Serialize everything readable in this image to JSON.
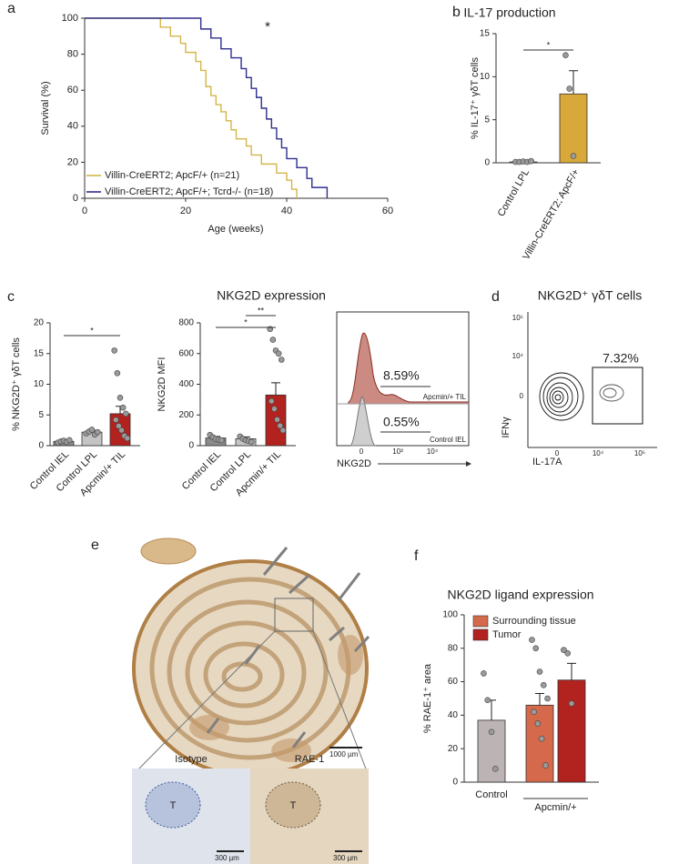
{
  "panel_labels": [
    "a",
    "b",
    "c",
    "d",
    "e",
    "f"
  ],
  "chart_data": [
    {
      "type": "step",
      "x_label": "Age (weeks)",
      "y_label": "Survival (%)",
      "annotation": "*",
      "xlim": [
        0,
        60
      ],
      "xticks": [
        0,
        20,
        40,
        60
      ],
      "ylim": [
        0,
        100
      ],
      "yticks": [
        0,
        20,
        40,
        60,
        80,
        100
      ],
      "series": [
        {
          "name": "Villin-CreERT2; ApcF/+ (n=21)",
          "color": "#d4b54a",
          "x": [
            0,
            15,
            17,
            19,
            20,
            22,
            23,
            24,
            25,
            26,
            27,
            28,
            29,
            30,
            32,
            33,
            35,
            38,
            40,
            41,
            42
          ],
          "values": [
            100,
            95,
            90,
            86,
            81,
            76,
            71,
            62,
            57,
            52,
            48,
            43,
            38,
            33,
            29,
            24,
            19,
            14,
            10,
            5,
            0
          ]
        },
        {
          "name": "Villin-CreERT2; ApcF/+; Tcrd-/- (n=18)",
          "color": "#2e2f8c",
          "x": [
            0,
            23,
            25,
            27,
            29,
            31,
            32,
            33,
            34,
            35,
            36,
            37,
            38,
            39,
            40,
            42,
            44,
            45,
            48
          ],
          "values": [
            100,
            94,
            89,
            83,
            78,
            72,
            67,
            61,
            56,
            50,
            44,
            39,
            33,
            28,
            22,
            17,
            11,
            6,
            0
          ]
        }
      ]
    },
    {
      "type": "bar",
      "title": "IL-17 production",
      "y_label": "% IL-17⁺ γδT cells",
      "categories": [
        "Control LPL",
        "Villin-CreERT2; ApcF/+"
      ],
      "values": [
        0.1,
        8
      ],
      "errors": [
        0.05,
        2.7
      ],
      "colors": [
        "#bdbdbd",
        "#d8a83a"
      ],
      "points": [
        [
          0.1,
          0.1,
          0.15,
          0.1,
          0.2
        ],
        [
          12.5,
          8.6,
          0.8
        ]
      ],
      "ylim": [
        0,
        15
      ],
      "yticks": [
        0,
        5,
        10,
        15
      ],
      "significance": [
        "*"
      ]
    },
    {
      "type": "bar",
      "y_label": "% NKG2D⁺ γδT cells",
      "categories": [
        "Control IEL",
        "Control LPL",
        "Apcmin/+ TIL"
      ],
      "values": [
        0.7,
        2.2,
        5.2
      ],
      "errors": [
        0.2,
        0.3,
        1.2
      ],
      "colors": [
        "#8a8a8a",
        "#c4c4c4",
        "#b2221e"
      ],
      "points": [
        [
          0.5,
          0.7,
          0.8,
          0.6,
          0.9
        ],
        [
          2.0,
          2.3,
          2.6,
          1.8,
          2.2
        ],
        [
          15.5,
          11.8,
          7.8,
          6.2,
          5.2,
          4.2,
          3.2,
          2.5,
          1.6,
          1.2
        ]
      ],
      "ylim": [
        0,
        20
      ],
      "yticks": [
        0,
        5,
        10,
        15,
        20
      ],
      "significance": [
        "*"
      ]
    },
    {
      "type": "bar",
      "title": "NKG2D expression",
      "y_label": "NKG2D MFI",
      "categories": [
        "Control IEL",
        "Control LPL",
        "Apcmin/+ TIL"
      ],
      "values": [
        50,
        45,
        330
      ],
      "errors": [
        10,
        12,
        80
      ],
      "colors": [
        "#8a8a8a",
        "#c4c4c4",
        "#b2221e"
      ],
      "points": [
        [
          70,
          55,
          45,
          40,
          35
        ],
        [
          60,
          45,
          35,
          30,
          25
        ],
        [
          760,
          690,
          620,
          600,
          560,
          290,
          240,
          170,
          130,
          100
        ]
      ],
      "ylim": [
        0,
        800
      ],
      "yticks": [
        0,
        200,
        400,
        600,
        800
      ],
      "significance": [
        "*",
        "**"
      ]
    },
    {
      "type": "bar",
      "title": "NKG2D ligand expression",
      "y_label": "% RAE-1⁺ area",
      "categories": [
        "Control",
        null,
        null
      ],
      "group_label": "Apcmin/+",
      "values": [
        37,
        46,
        61
      ],
      "errors": [
        12,
        7,
        10
      ],
      "colors": [
        "#bcb4b4",
        "#d4694c",
        "#b2221e"
      ],
      "legend": [
        {
          "name": "Surrounding tissue",
          "color": "#d4694c"
        },
        {
          "name": "Tumor",
          "color": "#b2221e"
        }
      ],
      "points": [
        [
          65,
          49,
          30,
          8
        ],
        [
          85,
          80,
          66,
          58,
          50,
          42,
          35,
          26,
          10
        ],
        [
          79,
          77,
          47
        ]
      ],
      "ylim": [
        0,
        100
      ],
      "yticks": [
        0,
        20,
        40,
        60,
        80,
        100
      ]
    }
  ],
  "flow_histogram": {
    "gates": [
      "8.59%",
      "0.55%"
    ],
    "samples": [
      "Apcmin/+ TIL",
      "Control IEL"
    ],
    "x_label": "NKG2D",
    "x_tick_labels": [
      "0",
      "10³",
      "10⁴"
    ]
  },
  "flow_contour": {
    "title": "NKG2D⁺ γδT cells",
    "gate": "7.32%",
    "y_label": "IFNγ",
    "x_label": "IL-17A",
    "y_tick_labels": [
      "10⁵",
      "10⁴",
      "0"
    ],
    "x_tick_labels": [
      "0",
      "10⁴",
      "10⁵"
    ]
  },
  "micrograph": {
    "scale_bar": "1000 µm",
    "insets": [
      {
        "label": "Isotype",
        "scale_bar": "300 µm",
        "region": "T"
      },
      {
        "label": "RAE-1",
        "scale_bar": "300 µm",
        "region": "T"
      }
    ]
  }
}
